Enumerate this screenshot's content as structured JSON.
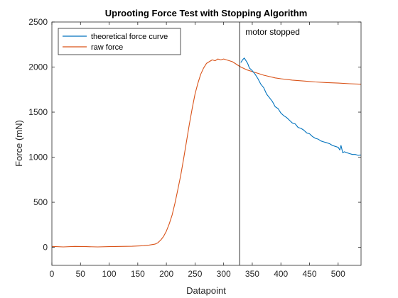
{
  "chart_data": {
    "type": "line",
    "title": "Uprooting Force Test with Stopping Algorithm",
    "xlabel": "Datapoint",
    "ylabel": "Force (mN)",
    "xlim": [
      0,
      540
    ],
    "ylim": [
      -200,
      2500
    ],
    "xticks": [
      0,
      50,
      100,
      150,
      200,
      250,
      300,
      350,
      400,
      450,
      500
    ],
    "yticks": [
      0,
      500,
      1000,
      1500,
      2000,
      2500
    ],
    "grid": false,
    "legend_position": "top-left",
    "axis_color": "#262626",
    "series": [
      {
        "name": "theoretical force curve",
        "color": "#0072BD",
        "x": [
          330,
          333,
          336,
          339,
          342,
          345,
          350,
          355,
          360,
          365,
          370,
          375,
          380,
          385,
          390,
          395,
          400,
          405,
          410,
          415,
          420,
          425,
          430,
          435,
          440,
          445,
          450,
          455,
          460,
          465,
          470,
          475,
          480,
          485,
          490,
          495,
          500,
          503,
          505,
          508,
          511,
          515,
          520,
          525,
          530,
          535,
          540
        ],
        "y": [
          2050,
          2080,
          2100,
          2070,
          2040,
          1990,
          1960,
          1920,
          1870,
          1810,
          1770,
          1700,
          1660,
          1620,
          1560,
          1540,
          1490,
          1460,
          1440,
          1410,
          1380,
          1370,
          1330,
          1320,
          1300,
          1270,
          1260,
          1230,
          1210,
          1200,
          1180,
          1170,
          1160,
          1150,
          1130,
          1120,
          1110,
          1080,
          1130,
          1050,
          1060,
          1050,
          1040,
          1030,
          1030,
          1020,
          1025
        ]
      },
      {
        "name": "raw force",
        "color": "#D95319",
        "x": [
          0,
          20,
          40,
          60,
          80,
          100,
          120,
          140,
          160,
          170,
          180,
          185,
          190,
          195,
          200,
          205,
          210,
          215,
          220,
          225,
          230,
          235,
          240,
          245,
          250,
          255,
          260,
          265,
          270,
          275,
          280,
          285,
          290,
          295,
          300,
          305,
          310,
          315,
          320,
          325,
          330,
          335,
          340,
          350,
          360,
          370,
          380,
          390,
          400,
          420,
          440,
          460,
          480,
          500,
          520,
          540
        ],
        "y": [
          10,
          5,
          10,
          8,
          5,
          8,
          10,
          12,
          18,
          25,
          35,
          50,
          80,
          120,
          180,
          260,
          360,
          490,
          640,
          800,
          980,
          1170,
          1360,
          1540,
          1700,
          1820,
          1920,
          1990,
          2040,
          2060,
          2080,
          2070,
          2090,
          2080,
          2090,
          2080,
          2070,
          2060,
          2040,
          2020,
          2000,
          1985,
          1970,
          1950,
          1930,
          1910,
          1895,
          1880,
          1870,
          1855,
          1845,
          1835,
          1828,
          1822,
          1815,
          1810
        ]
      }
    ],
    "annotations": [
      {
        "type": "vline",
        "x": 328,
        "color": "#000000"
      },
      {
        "type": "text",
        "text": "motor stopped",
        "x": 338,
        "y": 2360
      }
    ]
  }
}
